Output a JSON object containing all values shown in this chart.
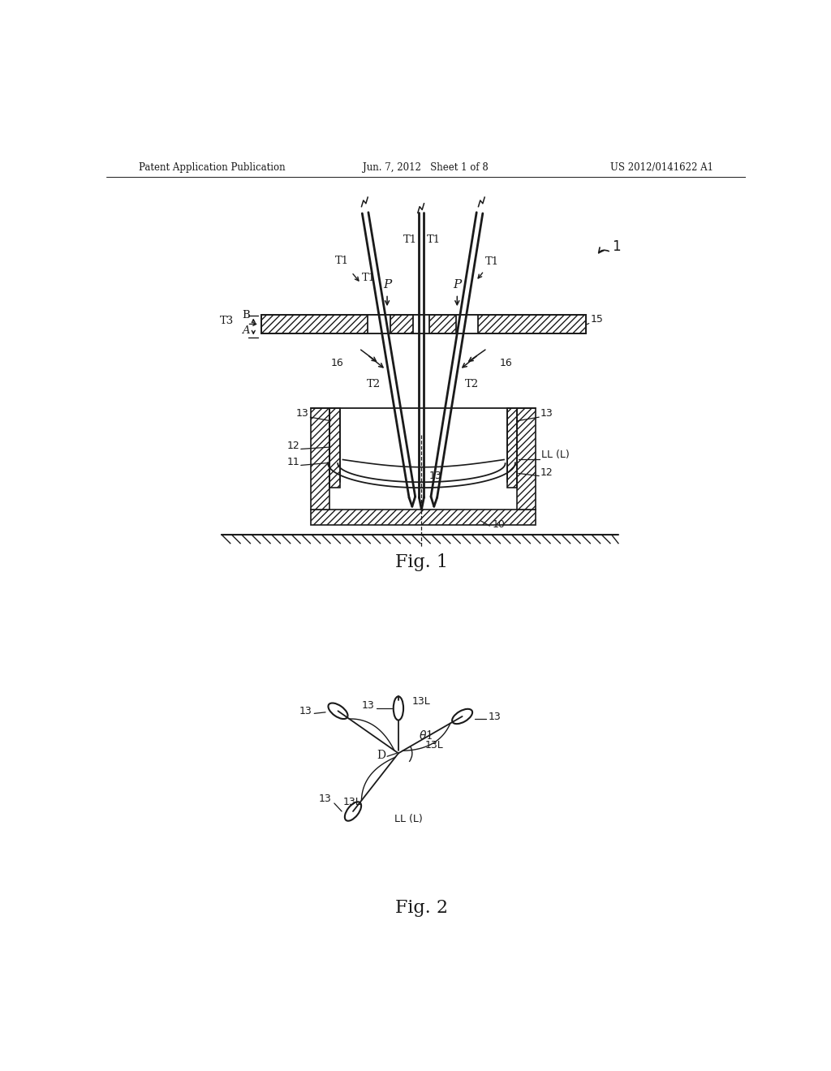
{
  "bg_color": "#ffffff",
  "line_color": "#1a1a1a",
  "header": {
    "left": "Patent Application Publication",
    "center": "Jun. 7, 2012   Sheet 1 of 8",
    "right": "US 2012/0141622 A1"
  },
  "fig1_label": "Fig. 1",
  "fig2_label": "Fig. 2"
}
